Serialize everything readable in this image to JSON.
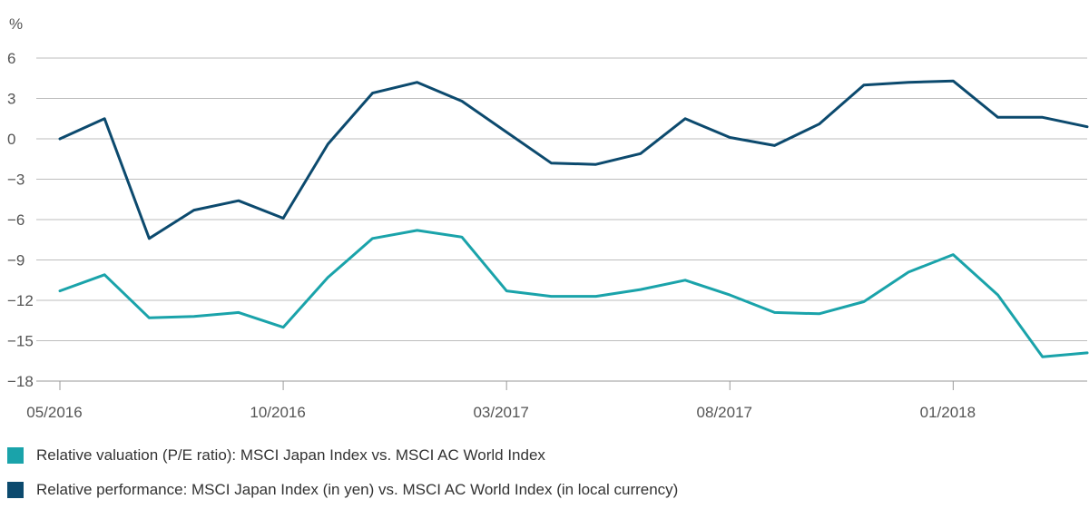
{
  "chart_data": {
    "type": "line",
    "ylabel": "%",
    "ylim": [
      -18,
      6
    ],
    "yticks": [
      6,
      3,
      0,
      -3,
      -6,
      -9,
      -12,
      -15,
      -18
    ],
    "ytick_labels": [
      "6",
      "3",
      "0",
      "−3",
      "−6",
      "−9",
      "−12",
      "−15",
      "−18"
    ],
    "xlim": [
      0,
      23
    ],
    "xticks": [
      0,
      5,
      10,
      15,
      20
    ],
    "xtick_labels": [
      "05/2016",
      "10/2016",
      "03/2017",
      "08/2017",
      "01/2018"
    ],
    "grid": true,
    "legend_position": "bottom-left",
    "series": [
      {
        "name": "Relative valuation (P/E ratio): MSCI Japan Index vs. MSCI AC World Index",
        "color": "#1aa3aa",
        "values": [
          -11.3,
          -10.1,
          -13.3,
          -13.2,
          -12.9,
          -14.0,
          -10.3,
          -7.4,
          -6.8,
          -7.3,
          -11.3,
          -11.7,
          -11.7,
          -11.2,
          -10.5,
          -11.6,
          -12.9,
          -13.0,
          -12.1,
          -9.9,
          -8.6,
          -11.6,
          -16.2,
          -15.9
        ]
      },
      {
        "name": "Relative performance: MSCI Japan Index (in yen) vs. MSCI AC World Index (in local currency)",
        "color": "#0c4a6e",
        "values": [
          0.0,
          1.5,
          -7.4,
          -5.3,
          -4.6,
          -5.9,
          -0.4,
          3.4,
          4.2,
          2.8,
          0.5,
          -1.8,
          -1.9,
          -1.1,
          1.5,
          0.1,
          -0.5,
          1.1,
          4.0,
          4.2,
          4.3,
          1.6,
          1.6,
          0.9
        ]
      }
    ]
  }
}
